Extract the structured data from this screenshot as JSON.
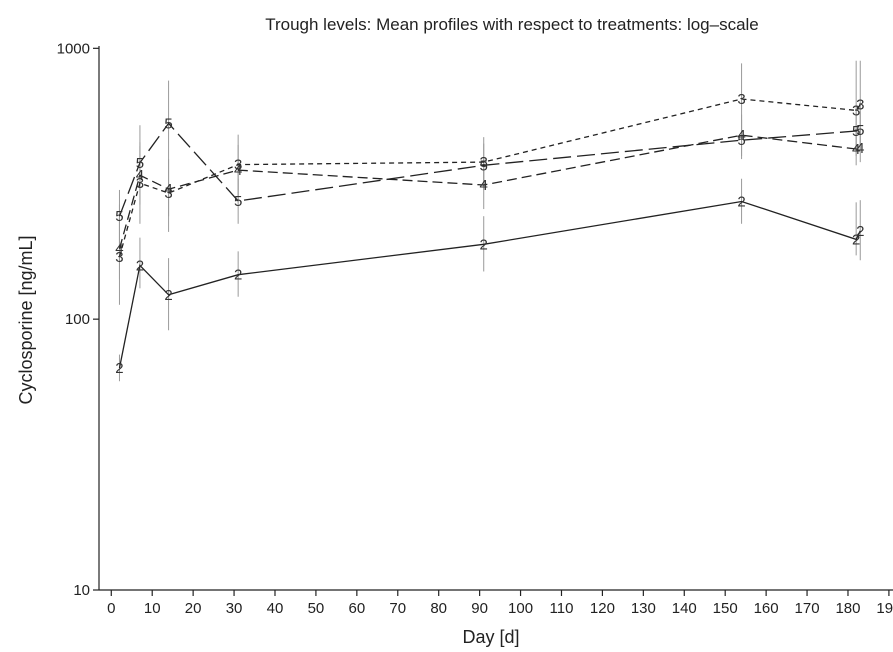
{
  "chart_data": {
    "type": "line",
    "title": "Trough levels: Mean profiles with respect to treatments: log–scale",
    "xlabel": "Day [d]",
    "ylabel": "Cyclosporine [ng/mL]",
    "xlim": [
      -3,
      191
    ],
    "ylim": [
      10,
      1020
    ],
    "yscale": "log",
    "xticks": [
      0,
      10,
      20,
      30,
      40,
      50,
      60,
      70,
      80,
      90,
      100,
      110,
      120,
      130,
      140,
      150,
      160,
      170,
      180,
      190
    ],
    "yticks": [
      10,
      100,
      1000
    ],
    "grid": false,
    "series": [
      {
        "marker": "2",
        "dash": "solid",
        "color": "#222222",
        "points": [
          {
            "x": 2,
            "y": 66,
            "lo": 59,
            "hi": 74
          },
          {
            "x": 7,
            "y": 158,
            "lo": 130,
            "hi": 200
          },
          {
            "x": 14,
            "y": 123,
            "lo": 91,
            "hi": 168
          },
          {
            "x": 31,
            "y": 146,
            "lo": 121,
            "hi": 178
          },
          {
            "x": 91,
            "y": 189,
            "lo": 150,
            "hi": 240
          },
          {
            "x": 154,
            "y": 272,
            "lo": 225,
            "hi": 330
          },
          {
            "x": 182,
            "y": 197,
            "lo": 172,
            "hi": 270
          },
          {
            "x": 183,
            "y": 212,
            "lo": 165,
            "hi": 275
          }
        ]
      },
      {
        "marker": "3",
        "dash": "short",
        "color": "#222222",
        "points": [
          {
            "x": 2,
            "y": 170,
            "lo": 113,
            "hi": 265
          },
          {
            "x": 7,
            "y": 318,
            "lo": 225,
            "hi": 450
          },
          {
            "x": 14,
            "y": 292,
            "lo": 210,
            "hi": 390
          },
          {
            "x": 31,
            "y": 372,
            "lo": 270,
            "hi": 480
          },
          {
            "x": 91,
            "y": 380,
            "lo": 300,
            "hi": 470
          },
          {
            "x": 154,
            "y": 650,
            "lo": 480,
            "hi": 880
          },
          {
            "x": 182,
            "y": 590,
            "lo": 400,
            "hi": 900
          },
          {
            "x": 183,
            "y": 620,
            "lo": 420,
            "hi": 900
          }
        ]
      },
      {
        "marker": "4",
        "dash": "medium",
        "color": "#222222",
        "points": [
          {
            "x": 2,
            "y": 182,
            "lo": 140,
            "hi": 240
          },
          {
            "x": 7,
            "y": 340,
            "lo": 265,
            "hi": 435
          },
          {
            "x": 14,
            "y": 302,
            "lo": 240,
            "hi": 380
          },
          {
            "x": 31,
            "y": 355,
            "lo": 285,
            "hi": 440
          },
          {
            "x": 91,
            "y": 313,
            "lo": 255,
            "hi": 385
          },
          {
            "x": 154,
            "y": 478,
            "lo": 400,
            "hi": 570
          },
          {
            "x": 182,
            "y": 425,
            "lo": 370,
            "hi": 495
          },
          {
            "x": 183,
            "y": 428,
            "lo": 380,
            "hi": 500
          }
        ]
      },
      {
        "marker": "5",
        "dash": "long",
        "color": "#222222",
        "points": [
          {
            "x": 2,
            "y": 240,
            "lo": 195,
            "hi": 300
          },
          {
            "x": 7,
            "y": 378,
            "lo": 300,
            "hi": 520
          },
          {
            "x": 14,
            "y": 528,
            "lo": 380,
            "hi": 760
          },
          {
            "x": 31,
            "y": 273,
            "lo": 225,
            "hi": 330
          },
          {
            "x": 91,
            "y": 370,
            "lo": 310,
            "hi": 445
          },
          {
            "x": 154,
            "y": 458,
            "lo": 390,
            "hi": 545
          },
          {
            "x": 182,
            "y": 495,
            "lo": 420,
            "hi": 580
          },
          {
            "x": 183,
            "y": 500,
            "lo": 425,
            "hi": 585
          }
        ]
      }
    ]
  }
}
